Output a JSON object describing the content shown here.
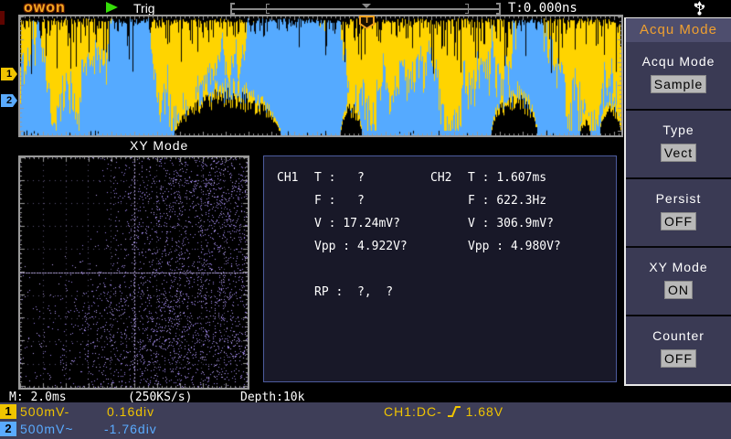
{
  "topbar": {
    "logo": "OWON",
    "trig_label": "Trig",
    "time_label": "T:0.000ns"
  },
  "waveform": {
    "trigger_marker": "T",
    "ch1_marker": "1",
    "ch2_marker": "2"
  },
  "xy": {
    "label": "XY Mode"
  },
  "measurements": {
    "ch1": {
      "name": "CH1",
      "rows": [
        {
          "k": "T : ",
          "v": "  ?"
        },
        {
          "k": "F : ",
          "v": "  ?"
        },
        {
          "k": "V : ",
          "v": "17.24mV?"
        },
        {
          "k": "Vpp : ",
          "v": "4.922V?"
        }
      ]
    },
    "ch2": {
      "name": "CH2",
      "rows": [
        {
          "k": "T : ",
          "v": "1.607ms"
        },
        {
          "k": "F : ",
          "v": "622.3Hz"
        },
        {
          "k": "V : ",
          "v": "306.9mV?"
        },
        {
          "k": "Vpp : ",
          "v": "4.980V?"
        }
      ]
    },
    "rp": {
      "k": "RP : ",
      "v": " ?,  ?"
    }
  },
  "sidebar": {
    "title": "Acqu Mode",
    "items": [
      {
        "label": "Acqu Mode",
        "value": "Sample"
      },
      {
        "label": "Type",
        "value": "Vect"
      },
      {
        "label": "Persist",
        "value": "OFF"
      },
      {
        "label": "XY Mode",
        "value": "ON"
      },
      {
        "label": "Counter",
        "value": "OFF"
      }
    ]
  },
  "status": {
    "timebase": "M: 2.0ms",
    "sample_rate": "(250KS/s)",
    "depth": "Depth:10k"
  },
  "channels": [
    {
      "num": "1",
      "scale": "500mV-",
      "offset": "0.16div"
    },
    {
      "num": "2",
      "scale": "500mV~",
      "offset": "-1.76div"
    }
  ],
  "trigger": {
    "source": "CH1:DC-",
    "level": "1.68V"
  },
  "colors": {
    "wave_blue": "#55aaff",
    "wave_yellow": "#ffd400",
    "graticule": "#9a9a9a",
    "xy_dot": "#9d85ea",
    "xy_dot_bright": "#bba7f5",
    "xy_center": "#b4a4dc",
    "xy_grid": "#5e5478"
  }
}
